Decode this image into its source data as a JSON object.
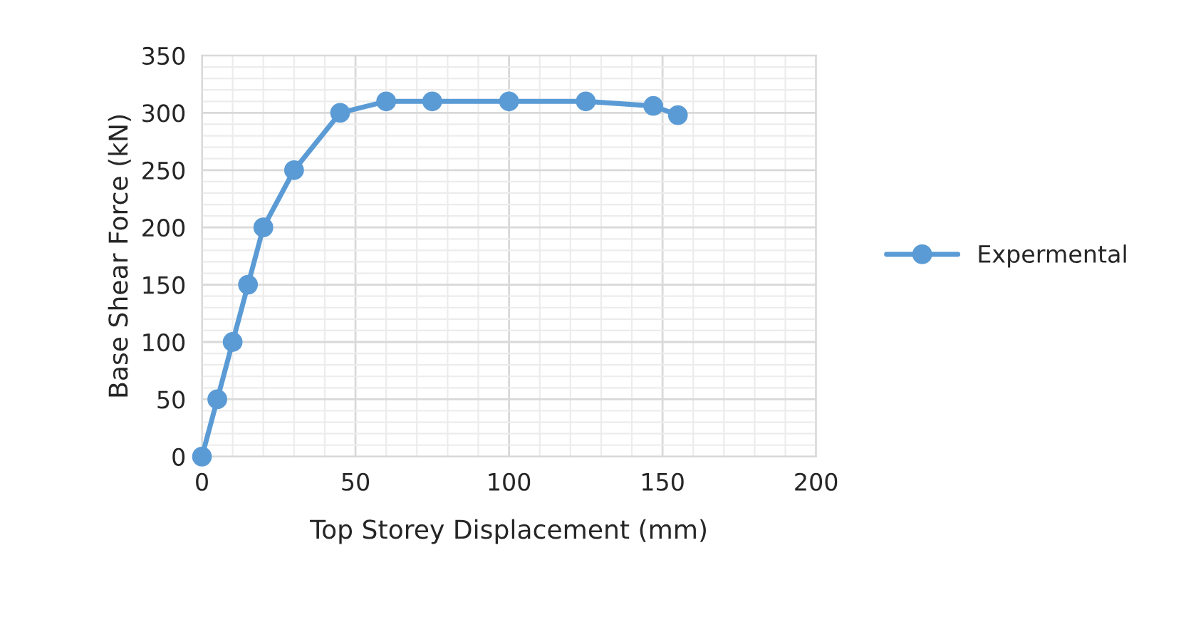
{
  "chart_data": {
    "type": "line",
    "xlabel": "Top Storey Displacement (mm)",
    "ylabel": "Base Shear Force (kN)",
    "series": [
      {
        "name": "Expermental",
        "color": "#5b9bd5",
        "x": [
          0,
          5,
          10,
          15,
          20,
          30,
          45,
          60,
          75,
          100,
          125,
          147,
          155
        ],
        "values": [
          0,
          50,
          100,
          150,
          200,
          250,
          300,
          310,
          310,
          310,
          310,
          306,
          298
        ]
      }
    ],
    "xlim": [
      0,
      200
    ],
    "xticks": [
      0,
      50,
      100,
      150,
      200
    ],
    "ylim": [
      0,
      350
    ],
    "yticks": [
      0,
      50,
      100,
      150,
      200,
      250,
      300,
      350
    ],
    "grid": true,
    "legend": "right",
    "marker": "circle",
    "line_style": "solid"
  }
}
